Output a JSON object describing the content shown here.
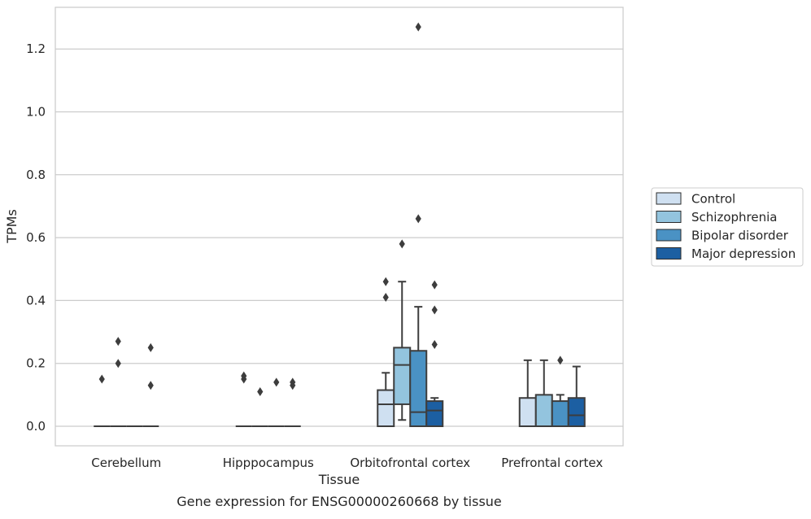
{
  "caption": "Gene expression for ENSG00000260668 by tissue",
  "chart_data": {
    "type": "box",
    "xlabel": "Tissue",
    "ylabel": "TPMs",
    "ylim": [
      -0.06,
      1.34
    ],
    "yticks": [
      0.0,
      0.2,
      0.4,
      0.6,
      0.8,
      1.0,
      1.2
    ],
    "ytick_labels": [
      "0.0",
      "0.2",
      "0.4",
      "0.6",
      "0.8",
      "1.0",
      "1.2"
    ],
    "grid": "horizontal",
    "legend_position": "right",
    "categories": [
      "Cerebellum",
      "Hipppocampus",
      "Orbitofrontal cortex",
      "Prefrontal cortex"
    ],
    "series": [
      {
        "name": "Control",
        "color": "#cfe0f1",
        "boxes": [
          {
            "q1": 0.0,
            "median": 0.0,
            "q3": 0.0,
            "whisker_low": 0.0,
            "whisker_high": 0.0,
            "outliers": [
              0.15
            ]
          },
          {
            "q1": 0.0,
            "median": 0.0,
            "q3": 0.0,
            "whisker_low": 0.0,
            "whisker_high": 0.0,
            "outliers": [
              0.15,
              0.16
            ]
          },
          {
            "q1": 0.0,
            "median": 0.07,
            "q3": 0.115,
            "whisker_low": 0.0,
            "whisker_high": 0.17,
            "outliers": [
              0.41,
              0.46
            ]
          },
          {
            "q1": 0.0,
            "median": 0.0,
            "q3": 0.09,
            "whisker_low": 0.0,
            "whisker_high": 0.21,
            "outliers": []
          }
        ]
      },
      {
        "name": "Schizophrenia",
        "color": "#93c4de",
        "boxes": [
          {
            "q1": 0.0,
            "median": 0.0,
            "q3": 0.0,
            "whisker_low": 0.0,
            "whisker_high": 0.0,
            "outliers": [
              0.2,
              0.27
            ]
          },
          {
            "q1": 0.0,
            "median": 0.0,
            "q3": 0.0,
            "whisker_low": 0.0,
            "whisker_high": 0.0,
            "outliers": [
              0.11
            ]
          },
          {
            "q1": 0.07,
            "median": 0.195,
            "q3": 0.25,
            "whisker_low": 0.02,
            "whisker_high": 0.46,
            "outliers": [
              0.58
            ]
          },
          {
            "q1": 0.0,
            "median": 0.0,
            "q3": 0.1,
            "whisker_low": 0.0,
            "whisker_high": 0.21,
            "outliers": []
          }
        ]
      },
      {
        "name": "Bipolar disorder",
        "color": "#4a92c4",
        "boxes": [
          {
            "q1": 0.0,
            "median": 0.0,
            "q3": 0.0,
            "whisker_low": 0.0,
            "whisker_high": 0.0,
            "outliers": []
          },
          {
            "q1": 0.0,
            "median": 0.0,
            "q3": 0.0,
            "whisker_low": 0.0,
            "whisker_high": 0.0,
            "outliers": [
              0.14
            ]
          },
          {
            "q1": 0.0,
            "median": 0.045,
            "q3": 0.24,
            "whisker_low": 0.0,
            "whisker_high": 0.38,
            "outliers": [
              0.66,
              1.27
            ]
          },
          {
            "q1": 0.0,
            "median": 0.0,
            "q3": 0.08,
            "whisker_low": 0.0,
            "whisker_high": 0.1,
            "outliers": [
              0.21
            ]
          }
        ]
      },
      {
        "name": "Major depression",
        "color": "#1c5fa2",
        "boxes": [
          {
            "q1": 0.0,
            "median": 0.0,
            "q3": 0.0,
            "whisker_low": 0.0,
            "whisker_high": 0.0,
            "outliers": [
              0.13,
              0.25
            ]
          },
          {
            "q1": 0.0,
            "median": 0.0,
            "q3": 0.0,
            "whisker_low": 0.0,
            "whisker_high": 0.0,
            "outliers": [
              0.13,
              0.14
            ]
          },
          {
            "q1": 0.0,
            "median": 0.05,
            "q3": 0.08,
            "whisker_low": 0.0,
            "whisker_high": 0.09,
            "outliers": [
              0.26,
              0.37,
              0.45
            ]
          },
          {
            "q1": 0.0,
            "median": 0.035,
            "q3": 0.09,
            "whisker_low": 0.0,
            "whisker_high": 0.19,
            "outliers": []
          }
        ]
      }
    ]
  }
}
